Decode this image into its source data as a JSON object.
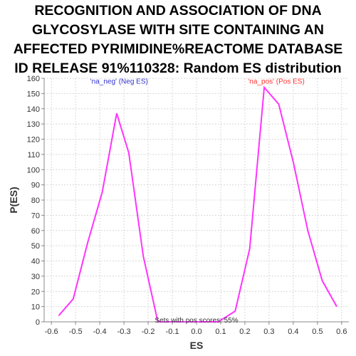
{
  "title_lines": [
    "RECOGNITION AND ASSOCIATION OF DNA",
    "GLYCOSYLASE WITH SITE CONTAINING AN",
    "AFFECTED PYRIMIDINE%REACTOME DATABASE",
    "ID RELEASE 91%110328: Random ES distribution"
  ],
  "chart_data": {
    "type": "line",
    "title": "RECOGNITION AND ASSOCIATION OF DNA GLYCOSYLASE WITH SITE CONTAINING AN AFFECTED PYRIMIDINE%REACTOME DATABASE ID RELEASE 91%110328: Random ES distribution",
    "xlabel": "ES",
    "ylabel": "P(ES)",
    "xlim": [
      -0.63,
      0.63
    ],
    "ylim": [
      0,
      160
    ],
    "xticks": [
      -0.6,
      -0.5,
      -0.4,
      -0.3,
      -0.2,
      -0.1,
      0.0,
      0.1,
      0.2,
      0.3,
      0.4,
      0.5,
      0.6
    ],
    "xtick_labels": [
      "-0.6",
      "-0.5",
      "-0.4",
      "-0.3",
      "-0.2",
      "-0.1",
      "0.0",
      "0.1",
      "0.2",
      "0.3",
      "0.4",
      "0.5",
      "0.6"
    ],
    "yticks": [
      0,
      10,
      20,
      30,
      40,
      50,
      60,
      70,
      80,
      90,
      100,
      110,
      120,
      130,
      140,
      150,
      160
    ],
    "ytick_labels": [
      "0",
      "10",
      "20",
      "30",
      "40",
      "50",
      "60",
      "70",
      "80",
      "90",
      "100",
      "110",
      "120",
      "130",
      "140",
      "150",
      "160"
    ],
    "grid": true,
    "series": [
      {
        "color": "#ff33ff",
        "x": [
          -0.57,
          -0.51,
          -0.45,
          -0.39,
          -0.33,
          -0.28,
          -0.22,
          -0.16,
          -0.1,
          -0.04,
          0.03,
          0.09,
          0.16,
          0.22,
          0.28,
          0.34,
          0.4,
          0.46,
          0.52,
          0.58
        ],
        "y": [
          4,
          15,
          52,
          85,
          137,
          111,
          43,
          0,
          0,
          0,
          0,
          0,
          7,
          48,
          154,
          143,
          105,
          60,
          27,
          10
        ]
      }
    ],
    "annotations": [
      {
        "text": "'na_neg' (Neg ES)",
        "x": -0.32,
        "y": 158,
        "color": "#3333cc"
      },
      {
        "text": "'na_pos' (Pos ES)",
        "x": 0.33,
        "y": 158,
        "color": "#ff3333"
      },
      {
        "text": "Sets with pos scores: 55%",
        "x": 0.0,
        "y": 1,
        "color": "#333333"
      }
    ]
  }
}
